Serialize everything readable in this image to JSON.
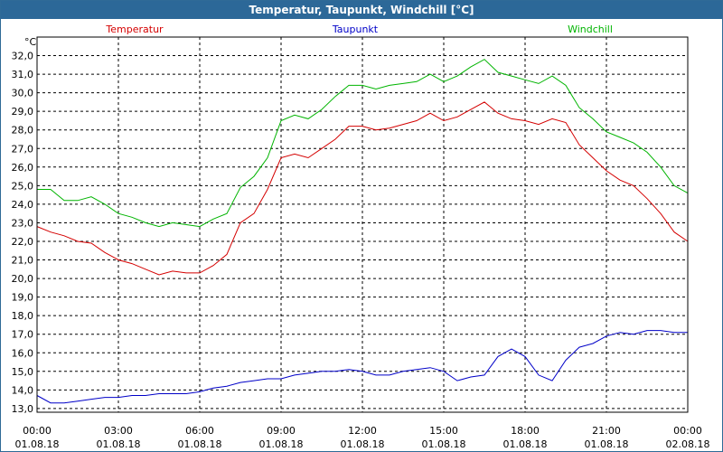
{
  "window": {
    "title": "Temperatur, Taupunkt, Windchill [°C]"
  },
  "chart_data": {
    "type": "line",
    "title": "Temperatur, Taupunkt, Windchill [°C]",
    "ylabel": "°C",
    "xlabel": "",
    "grid": true,
    "ylim": [
      12.8,
      33.0
    ],
    "xlim": [
      "2018-08-01T00:00",
      "2018-08-02T00:00"
    ],
    "y_ticks": [
      "13,0",
      "14,0",
      "15,0",
      "16,0",
      "17,0",
      "18,0",
      "19,0",
      "20,0",
      "21,0",
      "22,0",
      "23,0",
      "24,0",
      "25,0",
      "26,0",
      "27,0",
      "28,0",
      "29,0",
      "30,0",
      "31,0",
      "32,0"
    ],
    "x_ticks": [
      {
        "time": "00:00",
        "date": "01.08.18"
      },
      {
        "time": "03:00",
        "date": "01.08.18"
      },
      {
        "time": "06:00",
        "date": "01.08.18"
      },
      {
        "time": "09:00",
        "date": "01.08.18"
      },
      {
        "time": "12:00",
        "date": "01.08.18"
      },
      {
        "time": "15:00",
        "date": "01.08.18"
      },
      {
        "time": "18:00",
        "date": "01.08.18"
      },
      {
        "time": "21:00",
        "date": "01.08.18"
      },
      {
        "time": "00:00",
        "date": "02.08.18"
      }
    ],
    "legend": [
      "Temperatur",
      "Taupunkt",
      "Windchill"
    ],
    "series": [
      {
        "name": "Temperatur",
        "color": "#d40000",
        "points": [
          [
            "2018-08-01T00:00",
            22.8
          ],
          [
            "2018-08-01T00:30",
            22.5
          ],
          [
            "2018-08-01T01:00",
            22.3
          ],
          [
            "2018-08-01T01:30",
            22.0
          ],
          [
            "2018-08-01T02:00",
            21.9
          ],
          [
            "2018-08-01T02:30",
            21.4
          ],
          [
            "2018-08-01T03:00",
            21.0
          ],
          [
            "2018-08-01T03:30",
            20.8
          ],
          [
            "2018-08-01T04:00",
            20.5
          ],
          [
            "2018-08-01T04:30",
            20.2
          ],
          [
            "2018-08-01T05:00",
            20.4
          ],
          [
            "2018-08-01T05:30",
            20.3
          ],
          [
            "2018-08-01T06:00",
            20.3
          ],
          [
            "2018-08-01T06:30",
            20.7
          ],
          [
            "2018-08-01T07:00",
            21.3
          ],
          [
            "2018-08-01T07:30",
            23.0
          ],
          [
            "2018-08-01T08:00",
            23.5
          ],
          [
            "2018-08-01T08:30",
            24.8
          ],
          [
            "2018-08-01T09:00",
            26.5
          ],
          [
            "2018-08-01T09:30",
            26.7
          ],
          [
            "2018-08-01T10:00",
            26.5
          ],
          [
            "2018-08-01T10:30",
            27.0
          ],
          [
            "2018-08-01T11:00",
            27.5
          ],
          [
            "2018-08-01T11:30",
            28.2
          ],
          [
            "2018-08-01T12:00",
            28.2
          ],
          [
            "2018-08-01T12:30",
            28.0
          ],
          [
            "2018-08-01T13:00",
            28.1
          ],
          [
            "2018-08-01T13:30",
            28.3
          ],
          [
            "2018-08-01T14:00",
            28.5
          ],
          [
            "2018-08-01T14:30",
            28.9
          ],
          [
            "2018-08-01T15:00",
            28.5
          ],
          [
            "2018-08-01T15:30",
            28.7
          ],
          [
            "2018-08-01T16:00",
            29.1
          ],
          [
            "2018-08-01T16:30",
            29.5
          ],
          [
            "2018-08-01T17:00",
            28.9
          ],
          [
            "2018-08-01T17:30",
            28.6
          ],
          [
            "2018-08-01T18:00",
            28.5
          ],
          [
            "2018-08-01T18:30",
            28.3
          ],
          [
            "2018-08-01T19:00",
            28.6
          ],
          [
            "2018-08-01T19:30",
            28.4
          ],
          [
            "2018-08-01T20:00",
            27.2
          ],
          [
            "2018-08-01T20:30",
            26.5
          ],
          [
            "2018-08-01T21:00",
            25.8
          ],
          [
            "2018-08-01T21:30",
            25.3
          ],
          [
            "2018-08-01T22:00",
            25.0
          ],
          [
            "2018-08-01T22:30",
            24.3
          ],
          [
            "2018-08-01T23:00",
            23.5
          ],
          [
            "2018-08-01T23:30",
            22.5
          ],
          [
            "2018-08-02T00:00",
            22.0
          ]
        ]
      },
      {
        "name": "Taupunkt",
        "color": "#0000c8",
        "points": [
          [
            "2018-08-01T00:00",
            13.7
          ],
          [
            "2018-08-01T00:30",
            13.3
          ],
          [
            "2018-08-01T01:00",
            13.3
          ],
          [
            "2018-08-01T01:30",
            13.4
          ],
          [
            "2018-08-01T02:00",
            13.5
          ],
          [
            "2018-08-01T02:30",
            13.6
          ],
          [
            "2018-08-01T03:00",
            13.6
          ],
          [
            "2018-08-01T03:30",
            13.7
          ],
          [
            "2018-08-01T04:00",
            13.7
          ],
          [
            "2018-08-01T04:30",
            13.8
          ],
          [
            "2018-08-01T05:00",
            13.8
          ],
          [
            "2018-08-01T05:30",
            13.8
          ],
          [
            "2018-08-01T06:00",
            13.9
          ],
          [
            "2018-08-01T06:30",
            14.1
          ],
          [
            "2018-08-01T07:00",
            14.2
          ],
          [
            "2018-08-01T07:30",
            14.4
          ],
          [
            "2018-08-01T08:00",
            14.5
          ],
          [
            "2018-08-01T08:30",
            14.6
          ],
          [
            "2018-08-01T09:00",
            14.6
          ],
          [
            "2018-08-01T09:30",
            14.8
          ],
          [
            "2018-08-01T10:00",
            14.9
          ],
          [
            "2018-08-01T10:30",
            15.0
          ],
          [
            "2018-08-01T11:00",
            15.0
          ],
          [
            "2018-08-01T11:30",
            15.1
          ],
          [
            "2018-08-01T12:00",
            15.0
          ],
          [
            "2018-08-01T12:30",
            14.8
          ],
          [
            "2018-08-01T13:00",
            14.8
          ],
          [
            "2018-08-01T13:30",
            15.0
          ],
          [
            "2018-08-01T14:00",
            15.1
          ],
          [
            "2018-08-01T14:30",
            15.2
          ],
          [
            "2018-08-01T15:00",
            15.0
          ],
          [
            "2018-08-01T15:30",
            14.5
          ],
          [
            "2018-08-01T16:00",
            14.7
          ],
          [
            "2018-08-01T16:30",
            14.8
          ],
          [
            "2018-08-01T17:00",
            15.8
          ],
          [
            "2018-08-01T17:30",
            16.2
          ],
          [
            "2018-08-01T18:00",
            15.8
          ],
          [
            "2018-08-01T18:30",
            14.8
          ],
          [
            "2018-08-01T19:00",
            14.5
          ],
          [
            "2018-08-01T19:30",
            15.6
          ],
          [
            "2018-08-01T20:00",
            16.3
          ],
          [
            "2018-08-01T20:30",
            16.5
          ],
          [
            "2018-08-01T21:00",
            16.9
          ],
          [
            "2018-08-01T21:30",
            17.1
          ],
          [
            "2018-08-01T22:00",
            17.0
          ],
          [
            "2018-08-01T22:30",
            17.2
          ],
          [
            "2018-08-01T23:00",
            17.2
          ],
          [
            "2018-08-01T23:30",
            17.1
          ],
          [
            "2018-08-02T00:00",
            17.1
          ]
        ]
      },
      {
        "name": "Windchill",
        "color": "#00b400",
        "points": [
          [
            "2018-08-01T00:00",
            24.8
          ],
          [
            "2018-08-01T00:30",
            24.8
          ],
          [
            "2018-08-01T01:00",
            24.2
          ],
          [
            "2018-08-01T01:30",
            24.2
          ],
          [
            "2018-08-01T02:00",
            24.4
          ],
          [
            "2018-08-01T02:30",
            24.0
          ],
          [
            "2018-08-01T03:00",
            23.5
          ],
          [
            "2018-08-01T03:30",
            23.3
          ],
          [
            "2018-08-01T04:00",
            23.0
          ],
          [
            "2018-08-01T04:30",
            22.8
          ],
          [
            "2018-08-01T05:00",
            23.0
          ],
          [
            "2018-08-01T05:30",
            22.9
          ],
          [
            "2018-08-01T06:00",
            22.8
          ],
          [
            "2018-08-01T06:30",
            23.2
          ],
          [
            "2018-08-01T07:00",
            23.5
          ],
          [
            "2018-08-01T07:30",
            24.9
          ],
          [
            "2018-08-01T08:00",
            25.5
          ],
          [
            "2018-08-01T08:30",
            26.5
          ],
          [
            "2018-08-01T09:00",
            28.5
          ],
          [
            "2018-08-01T09:30",
            28.8
          ],
          [
            "2018-08-01T10:00",
            28.6
          ],
          [
            "2018-08-01T10:30",
            29.1
          ],
          [
            "2018-08-01T11:00",
            29.8
          ],
          [
            "2018-08-01T11:30",
            30.4
          ],
          [
            "2018-08-01T12:00",
            30.4
          ],
          [
            "2018-08-01T12:30",
            30.2
          ],
          [
            "2018-08-01T13:00",
            30.4
          ],
          [
            "2018-08-01T13:30",
            30.5
          ],
          [
            "2018-08-01T14:00",
            30.6
          ],
          [
            "2018-08-01T14:30",
            31.0
          ],
          [
            "2018-08-01T15:00",
            30.6
          ],
          [
            "2018-08-01T15:30",
            30.9
          ],
          [
            "2018-08-01T16:00",
            31.4
          ],
          [
            "2018-08-01T16:30",
            31.8
          ],
          [
            "2018-08-01T17:00",
            31.1
          ],
          [
            "2018-08-01T17:30",
            30.9
          ],
          [
            "2018-08-01T18:00",
            30.7
          ],
          [
            "2018-08-01T18:30",
            30.5
          ],
          [
            "2018-08-01T19:00",
            30.9
          ],
          [
            "2018-08-01T19:30",
            30.4
          ],
          [
            "2018-08-01T20:00",
            29.2
          ],
          [
            "2018-08-01T20:30",
            28.6
          ],
          [
            "2018-08-01T21:00",
            27.9
          ],
          [
            "2018-08-01T21:30",
            27.6
          ],
          [
            "2018-08-01T22:00",
            27.3
          ],
          [
            "2018-08-01T22:30",
            26.8
          ],
          [
            "2018-08-01T23:00",
            26.0
          ],
          [
            "2018-08-01T23:30",
            25.0
          ],
          [
            "2018-08-02T00:00",
            24.6
          ]
        ]
      }
    ]
  }
}
